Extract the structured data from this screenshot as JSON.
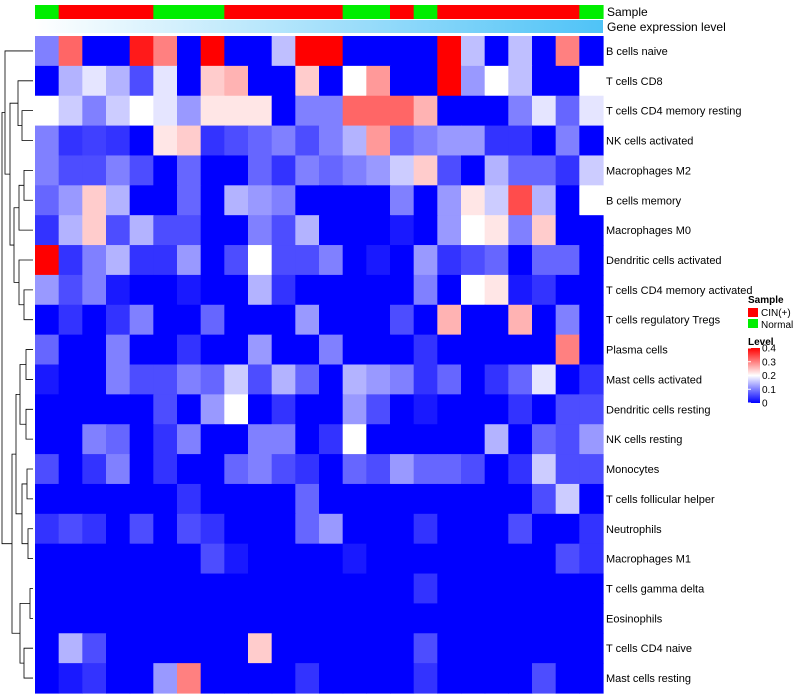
{
  "chart_data": {
    "type": "heatmap",
    "annotations": {
      "sample_label": "Sample",
      "expression_label": "Gene expression level"
    },
    "columns": 24,
    "sample_groups": [
      "Normal",
      "CIN(+)",
      "CIN(+)",
      "CIN(+)",
      "CIN(+)",
      "Normal",
      "Normal",
      "Normal",
      "CIN(+)",
      "CIN(+)",
      "CIN(+)",
      "CIN(+)",
      "CIN(+)",
      "Normal",
      "Normal",
      "CIN(+)",
      "Normal",
      "CIN(+)",
      "CIN(+)",
      "CIN(+)",
      "CIN(+)",
      "CIN(+)",
      "CIN(+)",
      "Normal"
    ],
    "rows": [
      {
        "label": "B cells naive",
        "values": [
          0.1,
          0.32,
          0.0,
          0.0,
          0.38,
          0.3,
          0.0,
          0.4,
          0.0,
          0.0,
          0.15,
          0.4,
          0.4,
          0.0,
          0.0,
          0.0,
          0.0,
          0.4,
          0.15,
          0.0,
          0.15,
          0.0,
          0.3,
          0.0
        ]
      },
      {
        "label": "T cells CD8",
        "values": [
          0.0,
          0.14,
          0.18,
          0.14,
          0.06,
          0.18,
          0.0,
          0.24,
          0.26,
          0.0,
          0.0,
          0.24,
          0.0,
          0.2,
          0.28,
          0.0,
          0.0,
          0.4,
          0.12,
          0.2,
          0.15,
          0.0,
          0.0,
          0.2
        ]
      },
      {
        "label": "T cells CD4 memory resting",
        "values": [
          0.2,
          0.16,
          0.1,
          0.16,
          0.2,
          0.18,
          0.12,
          0.22,
          0.22,
          0.22,
          0.0,
          0.1,
          0.1,
          0.32,
          0.32,
          0.32,
          0.26,
          0.0,
          0.0,
          0.0,
          0.1,
          0.18,
          0.08,
          0.18
        ]
      },
      {
        "label": "NK cells activated",
        "values": [
          0.1,
          0.04,
          0.05,
          0.04,
          0.0,
          0.22,
          0.24,
          0.04,
          0.06,
          0.08,
          0.1,
          0.06,
          0.1,
          0.14,
          0.28,
          0.08,
          0.1,
          0.12,
          0.12,
          0.04,
          0.04,
          0.0,
          0.1,
          0.0
        ]
      },
      {
        "label": "Macrophages M2",
        "values": [
          0.1,
          0.06,
          0.06,
          0.1,
          0.06,
          0.0,
          0.08,
          0.0,
          0.0,
          0.08,
          0.04,
          0.1,
          0.08,
          0.1,
          0.12,
          0.16,
          0.24,
          0.06,
          0.0,
          0.14,
          0.08,
          0.08,
          0.04,
          0.16
        ]
      },
      {
        "label": "B cells memory",
        "values": [
          0.08,
          0.12,
          0.24,
          0.14,
          0.0,
          0.0,
          0.08,
          0.0,
          0.14,
          0.12,
          0.1,
          0.0,
          0.0,
          0.0,
          0.0,
          0.1,
          0.0,
          0.12,
          0.22,
          0.16,
          0.34,
          0.14,
          0.0,
          0.2
        ]
      },
      {
        "label": "Macrophages M0",
        "values": [
          0.04,
          0.14,
          0.24,
          0.06,
          0.14,
          0.06,
          0.06,
          0.0,
          0.0,
          0.1,
          0.06,
          0.14,
          0.0,
          0.0,
          0.0,
          0.02,
          0.0,
          0.12,
          0.2,
          0.22,
          0.1,
          0.24,
          0.0,
          0.0
        ]
      },
      {
        "label": "Dendritic cells activated",
        "values": [
          0.4,
          0.04,
          0.1,
          0.14,
          0.04,
          0.04,
          0.12,
          0.0,
          0.06,
          0.2,
          0.06,
          0.06,
          0.1,
          0.0,
          0.02,
          0.0,
          0.12,
          0.04,
          0.06,
          0.08,
          0.0,
          0.08,
          0.08,
          0.0
        ]
      },
      {
        "label": "T cells CD4 memory activated",
        "values": [
          0.12,
          0.06,
          0.1,
          0.02,
          0.0,
          0.0,
          0.02,
          0.0,
          0.0,
          0.14,
          0.04,
          0.0,
          0.0,
          0.0,
          0.0,
          0.0,
          0.1,
          0.0,
          0.2,
          0.22,
          0.02,
          0.04,
          0.0,
          0.0
        ]
      },
      {
        "label": "T cells regulatory  Tregs",
        "values": [
          0.0,
          0.04,
          0.0,
          0.04,
          0.1,
          0.0,
          0.0,
          0.08,
          0.0,
          0.0,
          0.0,
          0.12,
          0.0,
          0.0,
          0.0,
          0.06,
          0.0,
          0.26,
          0.0,
          0.0,
          0.26,
          0.0,
          0.1,
          0.0
        ]
      },
      {
        "label": "Plasma cells",
        "values": [
          0.08,
          0.0,
          0.0,
          0.1,
          0.0,
          0.0,
          0.04,
          0.0,
          0.0,
          0.12,
          0.0,
          0.0,
          0.1,
          0.0,
          0.0,
          0.0,
          0.04,
          0.0,
          0.0,
          0.0,
          0.0,
          0.0,
          0.3,
          0.0
        ]
      },
      {
        "label": "Mast cells activated",
        "values": [
          0.02,
          0.0,
          0.0,
          0.1,
          0.06,
          0.06,
          0.1,
          0.08,
          0.16,
          0.06,
          0.14,
          0.08,
          0.0,
          0.14,
          0.12,
          0.1,
          0.04,
          0.08,
          0.0,
          0.04,
          0.08,
          0.18,
          0.0,
          0.04
        ]
      },
      {
        "label": "Dendritic cells resting",
        "values": [
          0.0,
          0.0,
          0.0,
          0.0,
          0.0,
          0.06,
          0.0,
          0.12,
          0.2,
          0.0,
          0.04,
          0.0,
          0.0,
          0.12,
          0.06,
          0.0,
          0.02,
          0.0,
          0.0,
          0.0,
          0.04,
          0.0,
          0.06,
          0.06
        ]
      },
      {
        "label": "NK cells resting",
        "values": [
          0.0,
          0.0,
          0.1,
          0.08,
          0.0,
          0.04,
          0.1,
          0.0,
          0.0,
          0.1,
          0.1,
          0.0,
          0.04,
          0.2,
          0.0,
          0.0,
          0.0,
          0.0,
          0.0,
          0.14,
          0.0,
          0.08,
          0.06,
          0.12
        ]
      },
      {
        "label": "Monocytes",
        "values": [
          0.06,
          0.0,
          0.04,
          0.1,
          0.0,
          0.04,
          0.0,
          0.0,
          0.08,
          0.1,
          0.06,
          0.04,
          0.0,
          0.08,
          0.06,
          0.12,
          0.08,
          0.08,
          0.06,
          0.0,
          0.04,
          0.16,
          0.06,
          0.06
        ]
      },
      {
        "label": "T cells follicular helper",
        "values": [
          0.0,
          0.0,
          0.0,
          0.0,
          0.0,
          0.0,
          0.04,
          0.0,
          0.0,
          0.0,
          0.0,
          0.08,
          0.0,
          0.0,
          0.0,
          0.0,
          0.0,
          0.0,
          0.0,
          0.0,
          0.0,
          0.06,
          0.16,
          0.0
        ]
      },
      {
        "label": "Neutrophils",
        "values": [
          0.04,
          0.06,
          0.04,
          0.0,
          0.06,
          0.0,
          0.06,
          0.04,
          0.0,
          0.0,
          0.0,
          0.08,
          0.12,
          0.0,
          0.0,
          0.0,
          0.04,
          0.0,
          0.0,
          0.0,
          0.06,
          0.0,
          0.0,
          0.04
        ]
      },
      {
        "label": "Macrophages M1",
        "values": [
          0.0,
          0.0,
          0.0,
          0.0,
          0.0,
          0.0,
          0.0,
          0.06,
          0.02,
          0.0,
          0.0,
          0.0,
          0.0,
          0.02,
          0.0,
          0.0,
          0.0,
          0.0,
          0.0,
          0.0,
          0.0,
          0.0,
          0.06,
          0.04
        ]
      },
      {
        "label": "T cells gamma delta",
        "values": [
          0.0,
          0.0,
          0.0,
          0.0,
          0.0,
          0.0,
          0.0,
          0.0,
          0.0,
          0.0,
          0.0,
          0.0,
          0.0,
          0.0,
          0.0,
          0.0,
          0.04,
          0.0,
          0.0,
          0.0,
          0.0,
          0.0,
          0.0,
          0.0
        ]
      },
      {
        "label": "Eosinophils",
        "values": [
          0.0,
          0.0,
          0.0,
          0.0,
          0.0,
          0.0,
          0.0,
          0.0,
          0.0,
          0.0,
          0.0,
          0.0,
          0.0,
          0.0,
          0.0,
          0.0,
          0.0,
          0.0,
          0.0,
          0.0,
          0.0,
          0.0,
          0.0,
          0.0
        ]
      },
      {
        "label": "T cells CD4 naive",
        "values": [
          0.0,
          0.14,
          0.06,
          0.0,
          0.0,
          0.0,
          0.0,
          0.0,
          0.0,
          0.24,
          0.0,
          0.0,
          0.0,
          0.0,
          0.0,
          0.0,
          0.06,
          0.0,
          0.0,
          0.0,
          0.0,
          0.0,
          0.0,
          0.0
        ]
      },
      {
        "label": "Mast cells resting",
        "values": [
          0.0,
          0.02,
          0.04,
          0.0,
          0.0,
          0.12,
          0.3,
          0.0,
          0.0,
          0.0,
          0.0,
          0.04,
          0.0,
          0.0,
          0.0,
          0.0,
          0.04,
          0.0,
          0.0,
          0.0,
          0.0,
          0.06,
          0.0,
          0.0
        ]
      }
    ],
    "legend": {
      "sample_title": "Sample",
      "sample_entries": [
        {
          "label": "CIN(+)",
          "color": "#ff0000"
        },
        {
          "label": "Normal",
          "color": "#00ee00"
        }
      ],
      "level_title": "Level",
      "level_ticks": [
        {
          "value": 0.4,
          "label": "0.4"
        },
        {
          "value": 0.3,
          "label": "0.3"
        },
        {
          "value": 0.2,
          "label": "0.2"
        },
        {
          "value": 0.1,
          "label": "0.1"
        },
        {
          "value": 0.0,
          "label": "0"
        }
      ]
    },
    "color_scale": {
      "low": "#0000ff",
      "mid": "#ffffff",
      "high": "#ff0000",
      "min": 0,
      "mid_value": 0.2,
      "max": 0.4
    },
    "expression_gradient": {
      "start": "#ffffff",
      "end": "#4fc3f7"
    }
  }
}
